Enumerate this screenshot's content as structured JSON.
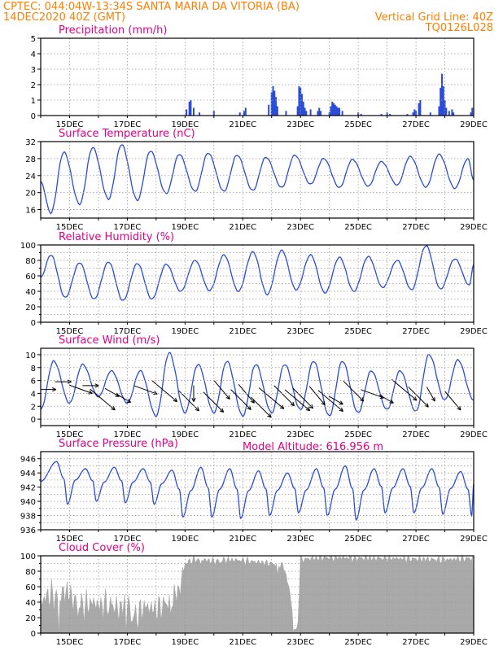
{
  "header": {
    "line1": "CPTEC:  044:04W-13:34S  SANTA MARIA DA VITORIA (BA)",
    "date": "14DEC2020 40Z (GMT)",
    "grid_note": "Vertical Grid Line: 40Z",
    "code": "TQ0126L028",
    "model_altitude": "Model Altitude: 616.956 m"
  },
  "colors": {
    "header": "#ff7f00",
    "title": "#e0008a",
    "line": "#2a4bd7",
    "cloud": "#a9a9a9"
  },
  "chart_data": [
    {
      "id": "precip",
      "type": "bar",
      "title": "Precipitation (mm/h)",
      "xlabels": [
        "15DEC",
        "17DEC",
        "19DEC",
        "21DEC",
        "23DEC",
        "25DEC",
        "27DEC",
        "29DEC"
      ],
      "ylim": [
        0,
        5
      ],
      "yticks": [
        0,
        1,
        2,
        3,
        4,
        5
      ],
      "grid": true,
      "days": [
        14.0,
        29.0
      ],
      "bars": [
        [
          19.05,
          0.4
        ],
        [
          19.15,
          0.9
        ],
        [
          19.2,
          1.0
        ],
        [
          19.3,
          0.5
        ],
        [
          19.5,
          0.2
        ],
        [
          20.0,
          0.3
        ],
        [
          20.9,
          0.2
        ],
        [
          21.05,
          0.3
        ],
        [
          21.1,
          0.5
        ],
        [
          21.9,
          0.7
        ],
        [
          22.0,
          1.5
        ],
        [
          22.05,
          1.9
        ],
        [
          22.1,
          1.6
        ],
        [
          22.15,
          1.2
        ],
        [
          22.2,
          0.6
        ],
        [
          22.5,
          0.3
        ],
        [
          22.9,
          0.6
        ],
        [
          22.95,
          1.9
        ],
        [
          23.0,
          1.8
        ],
        [
          23.05,
          1.4
        ],
        [
          23.1,
          0.9
        ],
        [
          23.15,
          0.5
        ],
        [
          23.2,
          0.3
        ],
        [
          23.35,
          0.4
        ],
        [
          23.6,
          0.3
        ],
        [
          23.65,
          0.5
        ],
        [
          23.7,
          0.3
        ],
        [
          24.0,
          0.2
        ],
        [
          24.05,
          0.6
        ],
        [
          24.1,
          0.9
        ],
        [
          24.15,
          0.8
        ],
        [
          24.2,
          0.7
        ],
        [
          24.25,
          0.6
        ],
        [
          24.3,
          0.5
        ],
        [
          24.35,
          0.5
        ],
        [
          24.45,
          0.3
        ],
        [
          25.0,
          0.2
        ],
        [
          25.1,
          0.1
        ],
        [
          25.8,
          0.1
        ],
        [
          26.0,
          0.2
        ],
        [
          26.1,
          0.1
        ],
        [
          26.7,
          0.1
        ],
        [
          26.9,
          0.2
        ],
        [
          26.95,
          0.4
        ],
        [
          27.0,
          0.3
        ],
        [
          27.1,
          0.8
        ],
        [
          27.15,
          1.0
        ],
        [
          27.5,
          0.2
        ],
        [
          27.8,
          0.6
        ],
        [
          27.85,
          1.8
        ],
        [
          27.9,
          2.7
        ],
        [
          27.95,
          1.9
        ],
        [
          28.0,
          1.0
        ],
        [
          28.05,
          0.5
        ],
        [
          28.15,
          0.3
        ],
        [
          28.25,
          0.4
        ],
        [
          28.3,
          0.2
        ],
        [
          28.9,
          0.2
        ],
        [
          28.95,
          0.5
        ]
      ]
    },
    {
      "id": "temp",
      "type": "line",
      "title": "Surface Temperature (nC)",
      "xlabels": [
        "15DEC",
        "17DEC",
        "19DEC",
        "21DEC",
        "23DEC",
        "25DEC",
        "27DEC",
        "29DEC"
      ],
      "ylim": [
        14,
        32
      ],
      "yticks": [
        16,
        20,
        24,
        28,
        32
      ],
      "grid": true,
      "days": [
        14.0,
        29.0
      ],
      "mins": [
        15.2,
        17.3,
        18.5,
        18.2,
        19.8,
        20.3,
        20.3,
        20.5,
        21.2,
        22.0,
        21.2,
        21.5,
        21.8,
        21.3,
        21.0
      ],
      "maxs": [
        29.5,
        30.6,
        31.3,
        29.8,
        29.0,
        29.3,
        28.8,
        28.3,
        28.8,
        28.0,
        27.8,
        27.3,
        28.5,
        29.0,
        28.0
      ],
      "start": 22.5,
      "end": 23.0
    },
    {
      "id": "rh",
      "type": "line",
      "title": "Relative Humidity (%)",
      "xlabels": [
        "15DEC",
        "17DEC",
        "19DEC",
        "21DEC",
        "23DEC",
        "25DEC",
        "27DEC",
        "29DEC"
      ],
      "ylim": [
        0,
        100
      ],
      "yticks": [
        0,
        10,
        20,
        30,
        40,
        50,
        60,
        70,
        80,
        90,
        100
      ],
      "ytick_labels": [
        0,
        20,
        40,
        60,
        80,
        100
      ],
      "grid": true,
      "days": [
        14.0,
        29.0
      ],
      "mins": [
        32,
        30,
        28,
        30,
        40,
        41,
        40,
        36,
        42,
        38,
        40,
        45,
        42,
        43,
        48
      ],
      "maxs": [
        87,
        77,
        78,
        76,
        75,
        80,
        87,
        91,
        93,
        87,
        84,
        85,
        80,
        99,
        82
      ],
      "start": 58,
      "end": 75
    },
    {
      "id": "wind",
      "type": "line",
      "title": "Surface Wind (m/s)",
      "xlabels": [
        "15DEC",
        "17DEC",
        "19DEC",
        "21DEC",
        "23DEC",
        "25DEC",
        "27DEC",
        "29DEC"
      ],
      "ylim": [
        -1,
        11
      ],
      "yticks": [
        0,
        2,
        4,
        6,
        8,
        10
      ],
      "grid": true,
      "days": [
        14.0,
        29.0
      ],
      "mins": [
        1.5,
        2.5,
        3.5,
        2.5,
        0.5,
        1.0,
        1.0,
        0.5,
        1.0,
        1.5,
        0.5,
        1.0,
        1.5,
        1.2,
        3.0
      ],
      "maxs": [
        9.0,
        8.5,
        7.5,
        7.5,
        10.3,
        8.5,
        9.0,
        8.5,
        8.5,
        9.0,
        9.0,
        7.5,
        7.5,
        10.0,
        9.2
      ],
      "start": 4.0,
      "end": 3.0,
      "arrows": [
        [
          14.22,
          4.6,
          180
        ],
        [
          14.75,
          5.8,
          180
        ],
        [
          15.35,
          4.7,
          160
        ],
        [
          15.7,
          5.2,
          180
        ],
        [
          16.1,
          3.2,
          140
        ],
        [
          16.45,
          4.2,
          150
        ],
        [
          16.85,
          3.3,
          150
        ],
        [
          17.6,
          4.6,
          160
        ],
        [
          18.25,
          4.5,
          140
        ],
        [
          19.1,
          3.0,
          135
        ],
        [
          19.3,
          4.1,
          90
        ],
        [
          19.95,
          2.8,
          135
        ],
        [
          20.25,
          4.7,
          130
        ],
        [
          20.9,
          3.2,
          135
        ],
        [
          21.1,
          4.1,
          130
        ],
        [
          21.6,
          2.0,
          135
        ],
        [
          21.95,
          3.4,
          140
        ],
        [
          22.4,
          3.8,
          135
        ],
        [
          22.85,
          3.1,
          140
        ],
        [
          23.05,
          3.4,
          135
        ],
        [
          23.55,
          3.8,
          130
        ],
        [
          24.0,
          3.0,
          140
        ],
        [
          24.2,
          3.0,
          150
        ],
        [
          24.8,
          4.5,
          135
        ],
        [
          25.45,
          4.0,
          160
        ],
        [
          25.95,
          3.2,
          150
        ],
        [
          26.55,
          4.7,
          140
        ],
        [
          27.05,
          3.6,
          135
        ],
        [
          27.5,
          4.0,
          120
        ],
        [
          28.25,
          3.0,
          130
        ]
      ]
    },
    {
      "id": "press",
      "type": "line",
      "title": "Surface Pressure (hPa)",
      "xlabels": [
        "15DEC",
        "17DEC",
        "19DEC",
        "21DEC",
        "23DEC",
        "25DEC",
        "27DEC",
        "29DEC"
      ],
      "ylim": [
        936,
        947
      ],
      "yticks": [
        936,
        937,
        938,
        939,
        940,
        941,
        942,
        943,
        944,
        945,
        946
      ],
      "ytick_labels": [
        936,
        938,
        940,
        942,
        944,
        946
      ],
      "grid": true,
      "days": [
        14.0,
        29.0
      ],
      "pmax": [
        945.6,
        944.6,
        944.8,
        944.6,
        944.4,
        944.8,
        944.6,
        944.3,
        944.0,
        944.6,
        945.0,
        944.6,
        944.6,
        944.6,
        944.2
      ],
      "pmin": [
        939.6,
        940.0,
        939.8,
        939.6,
        937.8,
        937.8,
        937.6,
        938.0,
        938.4,
        938.0,
        937.4,
        938.4,
        938.4,
        938.2,
        938.0
      ],
      "start": 942.8,
      "end": 942.4
    },
    {
      "id": "cloud",
      "type": "area",
      "title": "Cloud Cover (%)",
      "xlabels": [
        "15DEC",
        "17DEC",
        "19DEC",
        "21DEC",
        "23DEC",
        "25DEC",
        "27DEC",
        "29DEC"
      ],
      "ylim": [
        0,
        100
      ],
      "yticks": [
        0,
        10,
        20,
        30,
        40,
        50,
        60,
        70,
        80,
        90,
        100
      ],
      "ytick_labels": [
        0,
        20,
        40,
        60,
        80,
        100
      ],
      "grid": true,
      "days": [
        14.0,
        29.0
      ],
      "anchors": [
        [
          14.0,
          40
        ],
        [
          14.3,
          50
        ],
        [
          14.6,
          45
        ],
        [
          14.9,
          55
        ],
        [
          15.2,
          40
        ],
        [
          15.5,
          35
        ],
        [
          15.8,
          40
        ],
        [
          16.1,
          35
        ],
        [
          16.4,
          40
        ],
        [
          16.7,
          30
        ],
        [
          17.0,
          40
        ],
        [
          17.3,
          20
        ],
        [
          17.6,
          35
        ],
        [
          18.0,
          30
        ],
        [
          18.4,
          40
        ],
        [
          18.8,
          55
        ],
        [
          19.0,
          90
        ],
        [
          19.3,
          95
        ],
        [
          19.6,
          95
        ],
        [
          20.0,
          93
        ],
        [
          20.5,
          95
        ],
        [
          21.0,
          94
        ],
        [
          21.5,
          92
        ],
        [
          22.0,
          90
        ],
        [
          22.4,
          88
        ],
        [
          22.6,
          60
        ],
        [
          22.8,
          5
        ],
        [
          22.9,
          2
        ],
        [
          23.0,
          95
        ],
        [
          23.5,
          97
        ],
        [
          24.0,
          98
        ],
        [
          25.0,
          97
        ],
        [
          26.0,
          97
        ],
        [
          27.0,
          96
        ],
        [
          28.0,
          95
        ],
        [
          29.0,
          97
        ]
      ],
      "dips": [
        [
          14.62,
          0
        ],
        [
          15.3,
          20
        ],
        [
          16.35,
          30
        ],
        [
          16.95,
          0
        ],
        [
          17.15,
          15
        ],
        [
          18.5,
          25
        ],
        [
          19.55,
          88
        ],
        [
          20.2,
          90
        ],
        [
          22.2,
          75
        ],
        [
          22.75,
          2
        ]
      ]
    }
  ]
}
